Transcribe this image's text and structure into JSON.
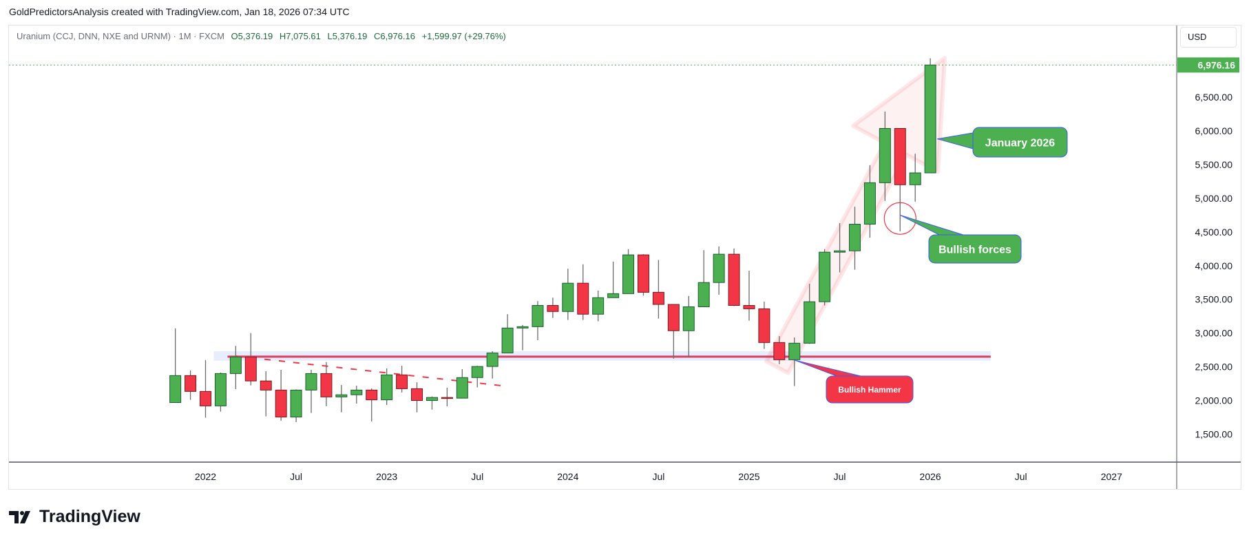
{
  "credit": "GoldPredictorsAnalysis created with TradingView.com, Jan 18, 2026 07:34 UTC",
  "legend": {
    "symbol": "Uranium (CCJ, DNN, NXE and URNM) · 1M · FXCM",
    "open": "O5,376.19",
    "high": "H7,075.61",
    "low": "L5,376.19",
    "close": "C6,976.16",
    "change": "+1,599.97 (+29.76%)"
  },
  "currency": "USD",
  "last_price_label": "6,976.16",
  "logo_text": "TradingView",
  "colors": {
    "up": "#4caf50",
    "down": "#f23645",
    "up_border": "#1b5e33",
    "down_border": "#7a1a22",
    "support": "#d63f5d",
    "band": "#e8edfd",
    "callout_border": "#3d5afe"
  },
  "chart_data": {
    "type": "candlestick",
    "interval": "1M",
    "ylim": [
      1200,
      7300
    ],
    "xlim": [
      "2021-09",
      "2027-05"
    ],
    "grid": false,
    "y_ticks": [
      {
        "value": 6500,
        "label": "6,500.00"
      },
      {
        "value": 6000,
        "label": "6,000.00"
      },
      {
        "value": 5500,
        "label": "5,500.00"
      },
      {
        "value": 5000,
        "label": "5,000.00"
      },
      {
        "value": 4500,
        "label": "4,500.00"
      },
      {
        "value": 4000,
        "label": "4,000.00"
      },
      {
        "value": 3500,
        "label": "3,500.00"
      },
      {
        "value": 3000,
        "label": "3,000.00"
      },
      {
        "value": 2500,
        "label": "2,500.00"
      },
      {
        "value": 2000,
        "label": "2,000.00"
      },
      {
        "value": 1500,
        "label": "1,500.00"
      }
    ],
    "x_ticks": [
      {
        "date": "2022-01",
        "label": "2022"
      },
      {
        "date": "2022-07",
        "label": "Jul"
      },
      {
        "date": "2023-01",
        "label": "2023"
      },
      {
        "date": "2023-07",
        "label": "Jul"
      },
      {
        "date": "2024-01",
        "label": "2024"
      },
      {
        "date": "2024-07",
        "label": "Jul"
      },
      {
        "date": "2025-01",
        "label": "2025"
      },
      {
        "date": "2025-07",
        "label": "Jul"
      },
      {
        "date": "2026-01",
        "label": "2026"
      },
      {
        "date": "2026-07",
        "label": "Jul"
      },
      {
        "date": "2027-01",
        "label": "2027"
      }
    ],
    "candles": [
      {
        "date": "2021-11",
        "o": 1970,
        "h": 3070,
        "l": 1970,
        "c": 2370
      },
      {
        "date": "2021-12",
        "o": 2370,
        "h": 2445,
        "l": 2010,
        "c": 2135
      },
      {
        "date": "2022-01",
        "o": 2135,
        "h": 2600,
        "l": 1745,
        "c": 1920
      },
      {
        "date": "2022-02",
        "o": 1920,
        "h": 2415,
        "l": 1835,
        "c": 2400
      },
      {
        "date": "2022-03",
        "o": 2400,
        "h": 2810,
        "l": 2170,
        "c": 2646
      },
      {
        "date": "2022-04",
        "o": 2646,
        "h": 3000,
        "l": 2225,
        "c": 2290
      },
      {
        "date": "2022-05",
        "o": 2290,
        "h": 2435,
        "l": 1765,
        "c": 2155
      },
      {
        "date": "2022-06",
        "o": 2155,
        "h": 2455,
        "l": 1700,
        "c": 1755
      },
      {
        "date": "2022-07",
        "o": 1755,
        "h": 2165,
        "l": 1680,
        "c": 2155
      },
      {
        "date": "2022-08",
        "o": 2155,
        "h": 2455,
        "l": 1815,
        "c": 2400
      },
      {
        "date": "2022-09",
        "o": 2400,
        "h": 2570,
        "l": 1915,
        "c": 2053
      },
      {
        "date": "2022-10",
        "o": 2053,
        "h": 2230,
        "l": 1825,
        "c": 2085
      },
      {
        "date": "2022-11",
        "o": 2085,
        "h": 2220,
        "l": 1955,
        "c": 2155
      },
      {
        "date": "2022-12",
        "o": 2155,
        "h": 2180,
        "l": 1690,
        "c": 2010
      },
      {
        "date": "2023-01",
        "o": 2010,
        "h": 2475,
        "l": 1935,
        "c": 2380
      },
      {
        "date": "2023-02",
        "o": 2380,
        "h": 2515,
        "l": 2120,
        "c": 2175
      },
      {
        "date": "2023-03",
        "o": 2175,
        "h": 2270,
        "l": 1825,
        "c": 2000
      },
      {
        "date": "2023-04",
        "o": 2000,
        "h": 2060,
        "l": 1865,
        "c": 2045
      },
      {
        "date": "2023-05",
        "o": 2045,
        "h": 2190,
        "l": 1915,
        "c": 2035
      },
      {
        "date": "2023-06",
        "o": 2035,
        "h": 2465,
        "l": 2030,
        "c": 2340
      },
      {
        "date": "2023-07",
        "o": 2340,
        "h": 2515,
        "l": 2195,
        "c": 2505
      },
      {
        "date": "2023-08",
        "o": 2505,
        "h": 2730,
        "l": 2325,
        "c": 2705
      },
      {
        "date": "2023-09",
        "o": 2705,
        "h": 3280,
        "l": 2705,
        "c": 3075
      },
      {
        "date": "2023-10",
        "o": 3075,
        "h": 3120,
        "l": 2745,
        "c": 3095
      },
      {
        "date": "2023-11",
        "o": 3095,
        "h": 3475,
        "l": 2895,
        "c": 3410
      },
      {
        "date": "2023-12",
        "o": 3410,
        "h": 3525,
        "l": 3225,
        "c": 3320
      },
      {
        "date": "2024-01",
        "o": 3320,
        "h": 3955,
        "l": 3195,
        "c": 3740
      },
      {
        "date": "2024-02",
        "o": 3740,
        "h": 4020,
        "l": 3195,
        "c": 3280
      },
      {
        "date": "2024-03",
        "o": 3280,
        "h": 3630,
        "l": 3175,
        "c": 3525
      },
      {
        "date": "2024-04",
        "o": 3525,
        "h": 4060,
        "l": 3525,
        "c": 3585
      },
      {
        "date": "2024-05",
        "o": 3585,
        "h": 4245,
        "l": 3585,
        "c": 4160
      },
      {
        "date": "2024-06",
        "o": 4160,
        "h": 4170,
        "l": 3555,
        "c": 3605
      },
      {
        "date": "2024-07",
        "o": 3605,
        "h": 4085,
        "l": 3215,
        "c": 3425
      },
      {
        "date": "2024-08",
        "o": 3425,
        "h": 3425,
        "l": 2620,
        "c": 3035
      },
      {
        "date": "2024-09",
        "o": 3035,
        "h": 3550,
        "l": 2640,
        "c": 3390
      },
      {
        "date": "2024-10",
        "o": 3390,
        "h": 4230,
        "l": 3390,
        "c": 3750
      },
      {
        "date": "2024-11",
        "o": 3750,
        "h": 4285,
        "l": 3570,
        "c": 4170
      },
      {
        "date": "2024-12",
        "o": 4170,
        "h": 4255,
        "l": 3400,
        "c": 3410
      },
      {
        "date": "2025-01",
        "o": 3410,
        "h": 3925,
        "l": 3185,
        "c": 3360
      },
      {
        "date": "2025-02",
        "o": 3360,
        "h": 3465,
        "l": 2765,
        "c": 2860
      },
      {
        "date": "2025-03",
        "o": 2860,
        "h": 2955,
        "l": 2540,
        "c": 2605
      },
      {
        "date": "2025-04",
        "o": 2605,
        "h": 2935,
        "l": 2215,
        "c": 2850
      },
      {
        "date": "2025-05",
        "o": 2850,
        "h": 3730,
        "l": 2840,
        "c": 3465
      },
      {
        "date": "2025-06",
        "o": 3465,
        "h": 4245,
        "l": 3410,
        "c": 4200
      },
      {
        "date": "2025-07",
        "o": 4200,
        "h": 4630,
        "l": 3900,
        "c": 4220
      },
      {
        "date": "2025-08",
        "o": 4220,
        "h": 4875,
        "l": 3940,
        "c": 4615
      },
      {
        "date": "2025-09",
        "o": 4615,
        "h": 5490,
        "l": 4415,
        "c": 5230
      },
      {
        "date": "2025-10",
        "o": 5230,
        "h": 6285,
        "l": 4960,
        "c": 6035
      },
      {
        "date": "2025-11",
        "o": 6035,
        "h": 6035,
        "l": 4510,
        "c": 5200
      },
      {
        "date": "2025-12",
        "o": 5200,
        "h": 5660,
        "l": 4950,
        "c": 5376.19
      },
      {
        "date": "2026-01",
        "o": 5376.19,
        "h": 7075.61,
        "l": 5376.19,
        "c": 6976.16
      }
    ],
    "last_price": 6976.16,
    "drawings": {
      "support_line": {
        "price": 2650,
        "band_low": 2590,
        "band_high": 2730,
        "from": "2022-02",
        "to": "2026-05"
      },
      "trend_line": {
        "from": {
          "date": "2022-03",
          "price": 2660
        },
        "to": {
          "date": "2023-09",
          "price": 2210
        }
      },
      "arrow": {
        "from": {
          "date": "2025-04",
          "price": 2700
        },
        "to": {
          "date": "2026-01",
          "price": 7080
        }
      },
      "circle": {
        "date": "2025-11",
        "price": 4700
      }
    },
    "annotations": [
      {
        "text": "January 2026",
        "anchor": {
          "date": "2026-01",
          "price": 5880
        },
        "style": "green"
      },
      {
        "text": "Bullish forces",
        "anchor": {
          "date": "2025-11",
          "price": 4750
        },
        "style": "green"
      },
      {
        "text": "Bullish Hammer",
        "anchor": {
          "date": "2025-04",
          "price": 2600
        },
        "style": "red"
      }
    ]
  }
}
